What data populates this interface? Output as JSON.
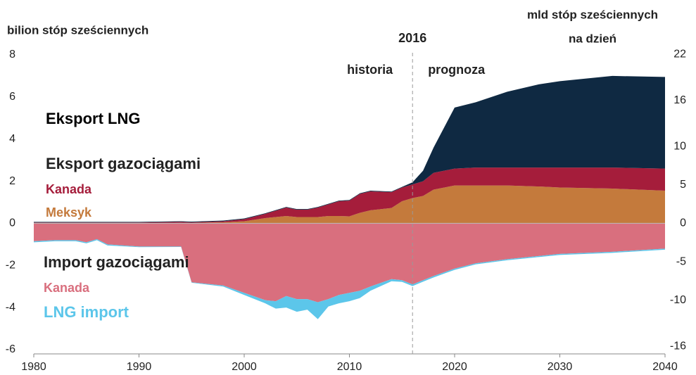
{
  "chart_data": {
    "type": "area",
    "ylabel": "bilion stóp sześciennych",
    "y2label": [
      "mld stóp sześciennych",
      "na dzień"
    ],
    "annotations": [
      "2016",
      "historia",
      "prognoza",
      "Eksport gazociągami",
      "Import gazociągami"
    ],
    "divider_x": 2016,
    "x": [
      1980,
      1982,
      1984,
      1985,
      1986,
      1987,
      1990,
      1994,
      1995,
      1998,
      2000,
      2002,
      2003,
      2004,
      2005,
      2006,
      2007,
      2008,
      2009,
      2010,
      2011,
      2012,
      2014,
      2015,
      2016,
      2017,
      2018,
      2020,
      2022,
      2025,
      2028,
      2030,
      2035,
      2040
    ],
    "series": [
      {
        "name": "Meksyk",
        "color": "#c47a3c",
        "values": [
          0.02,
          0.02,
          0.02,
          0.02,
          0.02,
          0.02,
          0.02,
          0.02,
          0.02,
          0.05,
          0.1,
          0.25,
          0.3,
          0.35,
          0.3,
          0.3,
          0.3,
          0.35,
          0.35,
          0.33,
          0.5,
          0.62,
          0.73,
          1.05,
          1.2,
          1.3,
          1.6,
          1.8,
          1.8,
          1.8,
          1.75,
          1.7,
          1.65,
          1.55
        ]
      },
      {
        "name": "Kanada",
        "color": "#a51d3b",
        "values": [
          0.02,
          0.02,
          0.02,
          0.02,
          0.02,
          0.02,
          0.02,
          0.05,
          0.03,
          0.05,
          0.1,
          0.2,
          0.3,
          0.4,
          0.35,
          0.35,
          0.45,
          0.55,
          0.7,
          0.75,
          0.9,
          0.9,
          0.75,
          0.65,
          0.65,
          0.7,
          0.8,
          0.8,
          0.85,
          0.85,
          0.9,
          0.95,
          1.0,
          1.05
        ]
      },
      {
        "name": "Eksport LNG",
        "color": "#0f2942",
        "values": [
          0.03,
          0.03,
          0.03,
          0.03,
          0.03,
          0.03,
          0.03,
          0.03,
          0.03,
          0.03,
          0.03,
          0.03,
          0.03,
          0.03,
          0.03,
          0.03,
          0.03,
          0.03,
          0.03,
          0.03,
          0.03,
          0.03,
          0.03,
          0.03,
          0.1,
          0.5,
          1.2,
          2.9,
          3.1,
          3.6,
          3.95,
          4.1,
          4.35,
          4.35
        ]
      },
      {
        "name": "Kanada",
        "color": "#d96f7e",
        "values": [
          -0.85,
          -0.8,
          -0.8,
          -0.9,
          -0.75,
          -1.0,
          -1.1,
          -1.1,
          -2.8,
          -2.95,
          -3.3,
          -3.65,
          -3.7,
          -3.45,
          -3.6,
          -3.6,
          -3.75,
          -3.6,
          -3.4,
          -3.3,
          -3.2,
          -3.0,
          -2.65,
          -2.7,
          -2.9,
          -2.7,
          -2.5,
          -2.15,
          -1.9,
          -1.7,
          -1.55,
          -1.45,
          -1.35,
          -1.2
        ]
      },
      {
        "name": "LNG import",
        "color": "#5cc6ea",
        "values": [
          -0.05,
          -0.05,
          -0.05,
          -0.05,
          -0.05,
          -0.05,
          -0.03,
          -0.02,
          -0.02,
          -0.05,
          -0.1,
          -0.15,
          -0.35,
          -0.55,
          -0.6,
          -0.5,
          -0.8,
          -0.35,
          -0.4,
          -0.4,
          -0.35,
          -0.2,
          -0.1,
          -0.08,
          -0.08,
          -0.07,
          -0.07,
          -0.06,
          -0.05,
          -0.05,
          -0.05,
          -0.05,
          -0.05,
          -0.05
        ]
      }
    ],
    "xlim": [
      1980,
      2040
    ],
    "xticks": [
      1980,
      1990,
      2000,
      2010,
      2020,
      2030,
      2040
    ],
    "ylim": [
      -6.2,
      8
    ],
    "yticks": [
      -6,
      -4,
      -2,
      0,
      2,
      4,
      6,
      8
    ],
    "y2lim": [
      -16.99,
      21.92
    ],
    "y2ticks": [
      -16,
      -10,
      -5,
      0,
      5,
      10,
      16,
      22
    ]
  }
}
